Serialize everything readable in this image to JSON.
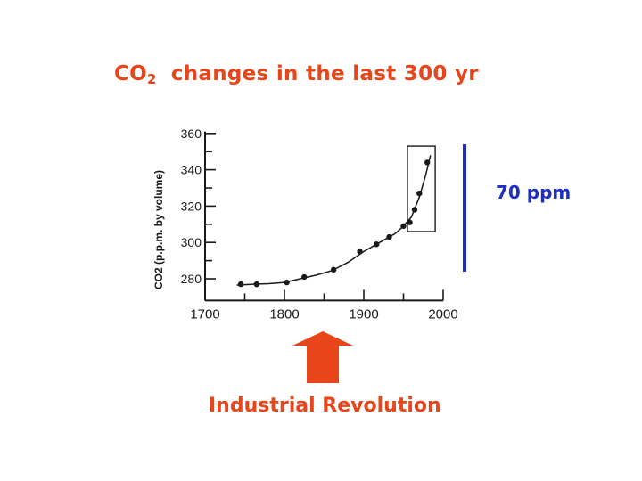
{
  "slide": {
    "title_prefix": "CO",
    "title_subscript": "2",
    "title_rest": "changes in the last 300 yr",
    "ppm_annotation": "70 ppm",
    "arrow_label": "Industrial Revolution",
    "colors": {
      "accent_orange": "#e8461a",
      "accent_blue": "#1f2ec4",
      "ink": "#1a1a1a"
    }
  },
  "chart_data": {
    "type": "scatter",
    "title": "",
    "ylabel": "CO2 (p.p.m. by volume)",
    "xlabel": "",
    "xlim": [
      1700,
      2000
    ],
    "ylim": [
      270,
      360
    ],
    "x_ticks": [
      1700,
      1800,
      1900,
      2000
    ],
    "y_ticks": [
      280,
      300,
      320,
      340,
      360
    ],
    "series": [
      {
        "x": [
          1745,
          1765,
          1803,
          1825,
          1862,
          1895,
          1916,
          1932,
          1950,
          1958,
          1964,
          1970,
          1980
        ],
        "y": [
          277,
          277,
          278,
          281,
          285,
          295,
          299,
          303,
          309,
          311,
          318,
          327,
          344
        ]
      }
    ],
    "trend_curve": {
      "x": [
        1740,
        1760,
        1780,
        1800,
        1820,
        1840,
        1860,
        1880,
        1900,
        1920,
        1940,
        1950,
        1960,
        1970,
        1978,
        1984
      ],
      "y": [
        276.5,
        277,
        277.3,
        278,
        280,
        282,
        284.5,
        289,
        295,
        300,
        305,
        309,
        314,
        325,
        337,
        348
      ]
    },
    "highlight_box": {
      "x": [
        1955,
        1990
      ],
      "y": [
        306,
        353
      ]
    },
    "grid": false,
    "legend": "none"
  }
}
